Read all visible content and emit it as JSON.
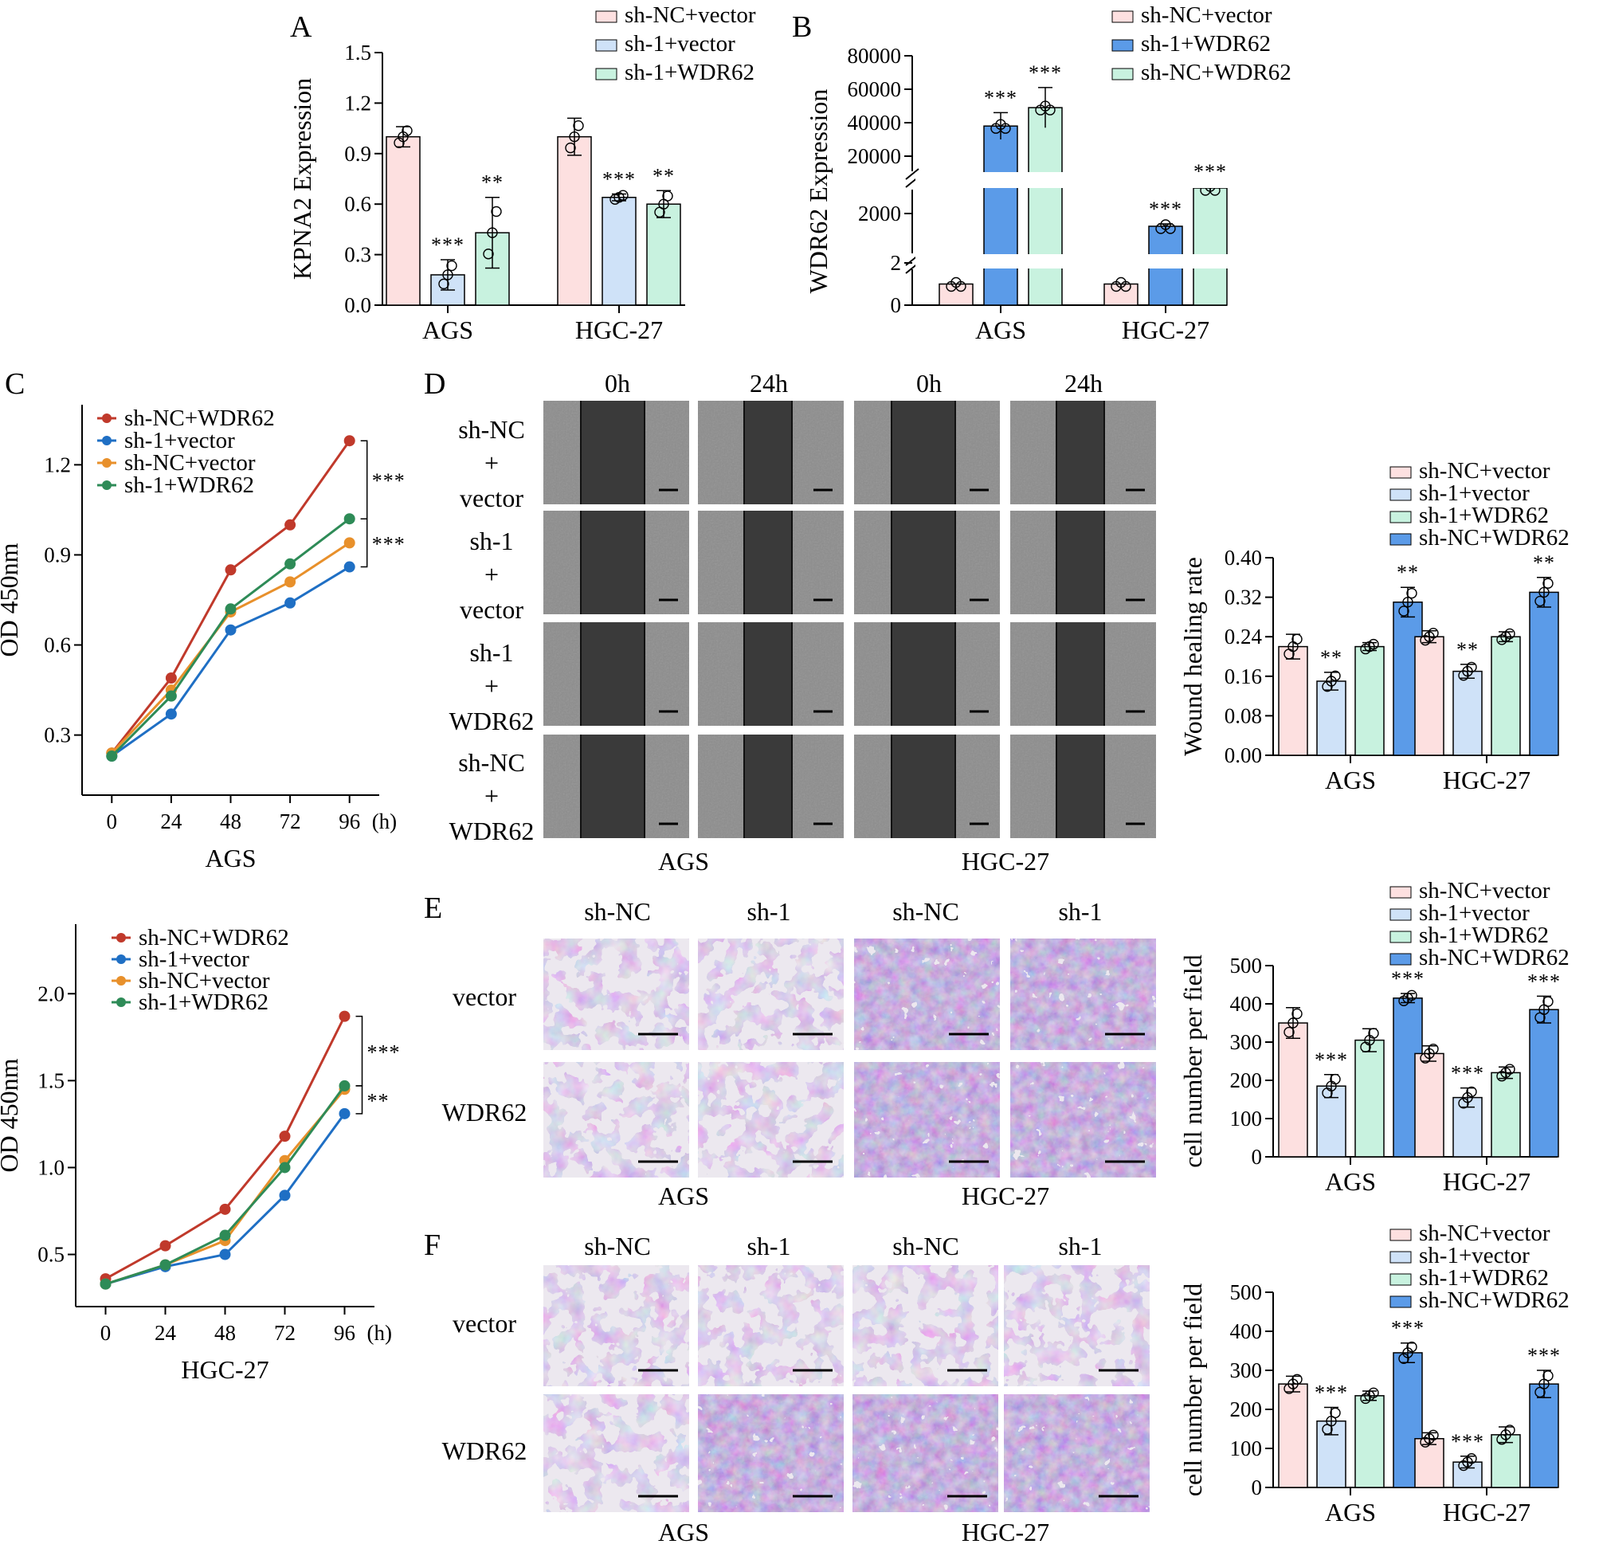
{
  "figure": {
    "panels": {
      "A": "A",
      "B": "B",
      "C": "C",
      "D": "D",
      "E": "E",
      "F": "F"
    },
    "image_panels": {
      "D": {
        "col_headers": [
          "0h",
          "24h",
          "0h",
          "24h"
        ],
        "row_labels": [
          [
            "sh-NC",
            "+",
            "vector"
          ],
          [
            "sh-1",
            "+",
            "vector"
          ],
          [
            "sh-1",
            "+",
            "WDR62"
          ],
          [
            "sh-NC",
            "+",
            "WDR62"
          ]
        ],
        "cell_line_captions": [
          "AGS",
          "HGC-27"
        ]
      },
      "E": {
        "col_headers": [
          "sh-NC",
          "sh-1",
          "sh-NC",
          "sh-1"
        ],
        "row_labels": [
          "vector",
          "WDR62"
        ],
        "cell_line_captions": [
          "AGS",
          "HGC-27"
        ]
      },
      "F": {
        "col_headers": [
          "sh-NC",
          "sh-1",
          "sh-NC",
          "sh-1"
        ],
        "row_labels": [
          "vector",
          "WDR62"
        ],
        "cell_line_captions": [
          "AGS",
          "HGC-27"
        ]
      }
    },
    "colors": {
      "pink": "#fde0e0",
      "lightblue": "#cfe2f8",
      "mint": "#c8f2df",
      "blue": "#5b9be8",
      "red": "#c0392b",
      "dblue": "#1f6fc4",
      "orange": "#e8902b",
      "green": "#2e8b57"
    }
  },
  "chart_data": [
    {
      "id": "A",
      "type": "bar",
      "title": "",
      "ylabel": "KPNA2  Expression",
      "categories": [
        "AGS",
        "HGC-27"
      ],
      "ylim": [
        0,
        1.5
      ],
      "yticks": [
        "0.0",
        "0.3",
        "0.6",
        "0.9",
        "1.2",
        "1.5"
      ],
      "series": [
        {
          "name": "sh-NC+vector",
          "values": [
            1.0,
            1.0
          ],
          "err": [
            0.06,
            0.11
          ],
          "sig": [
            "",
            ""
          ]
        },
        {
          "name": "sh-1+vector",
          "values": [
            0.18,
            0.64
          ],
          "err": [
            0.09,
            0.02
          ],
          "sig": [
            "***",
            "***"
          ]
        },
        {
          "name": "sh-1+WDR62",
          "values": [
            0.43,
            0.6
          ],
          "err": [
            0.21,
            0.08
          ],
          "sig": [
            "**",
            "**"
          ]
        }
      ]
    },
    {
      "id": "B",
      "type": "bar",
      "title": "",
      "ylabel": "WDR62  Expression",
      "categories": [
        "AGS",
        "HGC-27"
      ],
      "axis_break": true,
      "yticks": [
        "0",
        "2",
        "2000",
        "20000",
        "40000",
        "60000",
        "80000"
      ],
      "series": [
        {
          "name": "sh-NC+vector",
          "values": [
            1,
            1
          ],
          "err": [
            0,
            0
          ],
          "sig": [
            "",
            ""
          ]
        },
        {
          "name": "sh-1+WDR62",
          "values": [
            38000,
            1200
          ],
          "err": [
            8000,
            150
          ],
          "sig": [
            "***",
            "***"
          ]
        },
        {
          "name": "sh-NC+WDR62",
          "values": [
            49000,
            10000
          ],
          "err": [
            12000,
            500
          ],
          "sig": [
            "***",
            "***"
          ]
        }
      ]
    },
    {
      "id": "C-AGS",
      "type": "line",
      "xlabel": "AGS",
      "xunit": "(h)",
      "ylabel": "OD 450nm",
      "x": [
        0,
        24,
        48,
        72,
        96
      ],
      "xlim": [
        -12,
        108
      ],
      "ylim": [
        0.1,
        1.4
      ],
      "yticks": [
        "0.3",
        "0.6",
        "0.9",
        "1.2"
      ],
      "series": [
        {
          "name": "sh-NC+WDR62",
          "values": [
            0.24,
            0.49,
            0.85,
            1.0,
            1.28
          ]
        },
        {
          "name": "sh-1+vector",
          "values": [
            0.23,
            0.37,
            0.65,
            0.74,
            0.86
          ]
        },
        {
          "name": "sh-NC+vector",
          "values": [
            0.24,
            0.45,
            0.71,
            0.81,
            0.94
          ]
        },
        {
          "name": "sh-1+WDR62",
          "values": [
            0.23,
            0.43,
            0.72,
            0.87,
            1.02
          ]
        }
      ],
      "sig": [
        "***",
        "***"
      ]
    },
    {
      "id": "C-HGC27",
      "type": "line",
      "xlabel": "HGC-27",
      "xunit": "(h)",
      "ylabel": "OD 450nm",
      "x": [
        0,
        24,
        48,
        72,
        96
      ],
      "xlim": [
        -12,
        108
      ],
      "ylim": [
        0.2,
        2.4
      ],
      "yticks": [
        "0.5",
        "1.0",
        "1.5",
        "2.0"
      ],
      "series": [
        {
          "name": "sh-NC+WDR62",
          "values": [
            0.36,
            0.55,
            0.76,
            1.18,
            1.87
          ]
        },
        {
          "name": "sh-1+vector",
          "values": [
            0.33,
            0.43,
            0.5,
            0.84,
            1.31
          ]
        },
        {
          "name": "sh-NC+vector",
          "values": [
            0.33,
            0.44,
            0.58,
            1.04,
            1.45
          ]
        },
        {
          "name": "sh-1+WDR62",
          "values": [
            0.33,
            0.44,
            0.61,
            1.0,
            1.47
          ]
        }
      ],
      "sig": [
        "***",
        "**"
      ]
    },
    {
      "id": "D",
      "type": "bar",
      "ylabel": "Wound healing rate",
      "categories": [
        "AGS",
        "HGC-27"
      ],
      "ylim": [
        0,
        0.4
      ],
      "yticks": [
        "0.00",
        "0.08",
        "0.16",
        "0.24",
        "0.32",
        "0.40"
      ],
      "series": [
        {
          "name": "sh-NC+vector",
          "values": [
            0.22,
            0.24
          ],
          "err": [
            0.025,
            0.012
          ],
          "sig": [
            "",
            ""
          ]
        },
        {
          "name": "sh-1+vector",
          "values": [
            0.15,
            0.17
          ],
          "err": [
            0.018,
            0.014
          ],
          "sig": [
            "**",
            "**"
          ]
        },
        {
          "name": "sh-1+WDR62",
          "values": [
            0.22,
            0.24
          ],
          "err": [
            0.008,
            0.01
          ],
          "sig": [
            "",
            ""
          ]
        },
        {
          "name": "sh-NC+WDR62",
          "values": [
            0.31,
            0.33
          ],
          "err": [
            0.03,
            0.03
          ],
          "sig": [
            "**",
            "**"
          ]
        }
      ]
    },
    {
      "id": "E",
      "type": "bar",
      "ylabel": "cell number per field",
      "categories": [
        "AGS",
        "HGC-27"
      ],
      "ylim": [
        0,
        500
      ],
      "yticks": [
        "0",
        "100",
        "200",
        "300",
        "400",
        "500"
      ],
      "series": [
        {
          "name": "sh-NC+vector",
          "values": [
            350,
            270
          ],
          "err": [
            40,
            20
          ],
          "sig": [
            "",
            ""
          ]
        },
        {
          "name": "sh-1+vector",
          "values": [
            185,
            155
          ],
          "err": [
            30,
            25
          ],
          "sig": [
            "***",
            "***"
          ]
        },
        {
          "name": "sh-1+WDR62",
          "values": [
            305,
            220
          ],
          "err": [
            30,
            15
          ],
          "sig": [
            "",
            ""
          ]
        },
        {
          "name": "sh-NC+WDR62",
          "values": [
            415,
            385
          ],
          "err": [
            12,
            35
          ],
          "sig": [
            "***",
            "***"
          ]
        }
      ]
    },
    {
      "id": "F",
      "type": "bar",
      "ylabel": "cell number per field",
      "categories": [
        "AGS",
        "HGC-27"
      ],
      "ylim": [
        0,
        500
      ],
      "yticks": [
        "0",
        "100",
        "200",
        "300",
        "400",
        "500"
      ],
      "series": [
        {
          "name": "sh-NC+vector",
          "values": [
            265,
            125
          ],
          "err": [
            20,
            15
          ],
          "sig": [
            "",
            ""
          ]
        },
        {
          "name": "sh-1+vector",
          "values": [
            170,
            65
          ],
          "err": [
            35,
            15
          ],
          "sig": [
            "***",
            "***"
          ]
        },
        {
          "name": "sh-1+WDR62",
          "values": [
            235,
            135
          ],
          "err": [
            12,
            20
          ],
          "sig": [
            "",
            ""
          ]
        },
        {
          "name": "sh-NC+WDR62",
          "values": [
            345,
            265
          ],
          "err": [
            25,
            35
          ],
          "sig": [
            "***",
            "***"
          ]
        }
      ]
    }
  ]
}
